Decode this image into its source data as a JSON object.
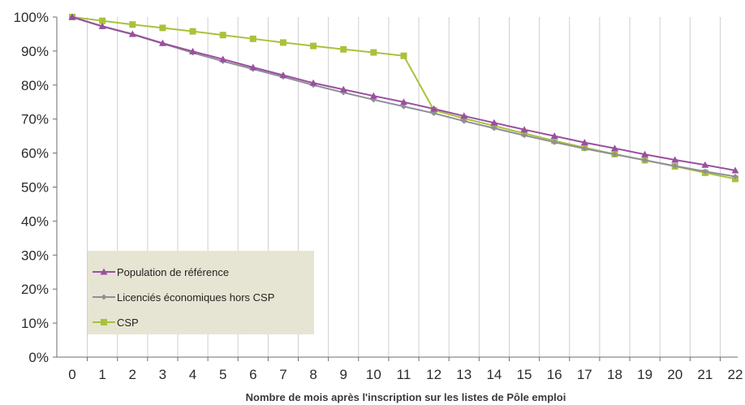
{
  "chart_data": {
    "type": "line",
    "xlabel": "Nombre de mois après l'inscription sur les listes de Pôle emploi",
    "ylabel": "",
    "x": [
      0,
      1,
      2,
      3,
      4,
      5,
      6,
      7,
      8,
      9,
      10,
      11,
      12,
      13,
      14,
      15,
      16,
      17,
      18,
      19,
      20,
      21,
      22
    ],
    "ylim": [
      0,
      100
    ],
    "yticks": [
      "0%",
      "10%",
      "20%",
      "30%",
      "40%",
      "50%",
      "60%",
      "70%",
      "80%",
      "90%",
      "100%"
    ],
    "grid": "vertical",
    "legend_position": "bottom-left",
    "series": [
      {
        "name": "Population de référence",
        "color": "#9b4fa0",
        "marker": "triangle",
        "values": [
          100,
          97.3,
          95.0,
          92.3,
          89.9,
          87.6,
          85.2,
          82.9,
          80.6,
          78.7,
          76.8,
          75.0,
          73.0,
          70.9,
          68.9,
          66.9,
          65.0,
          63.1,
          61.4,
          59.6,
          58.0,
          56.5,
          54.9
        ]
      },
      {
        "name": "Licenciés économiques hors CSP",
        "color": "#8f8f99",
        "marker": "diamond",
        "values": [
          100,
          97.2,
          94.9,
          92.2,
          89.5,
          87.0,
          84.7,
          82.4,
          80.0,
          77.8,
          75.7,
          73.7,
          71.7,
          69.4,
          67.3,
          65.2,
          63.2,
          61.3,
          59.6,
          57.9,
          56.2,
          54.6,
          53.1
        ]
      },
      {
        "name": "CSP",
        "color": "#a8c23a",
        "marker": "square",
        "values": [
          100,
          98.9,
          97.8,
          96.8,
          95.8,
          94.7,
          93.6,
          92.5,
          91.5,
          90.5,
          89.6,
          88.6,
          72.6,
          70.2,
          68.0,
          65.8,
          63.6,
          61.6,
          59.7,
          57.9,
          56.1,
          54.2,
          52.4
        ]
      }
    ]
  }
}
